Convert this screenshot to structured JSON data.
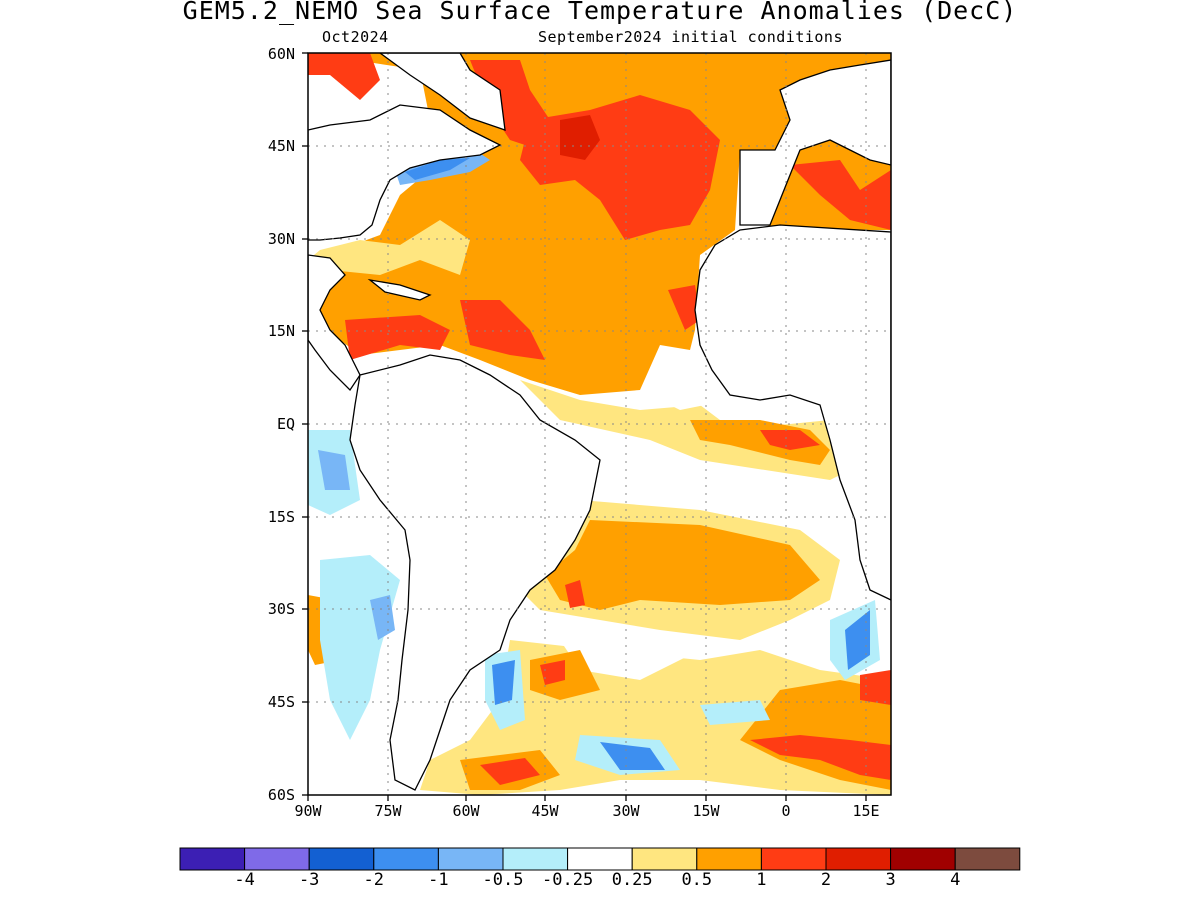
{
  "title": "GEM5.2_NEMO Sea Surface Temperature Anomalies (DecC)",
  "valid_month": "Oct2024",
  "init_conditions": "September2024 initial conditions",
  "lat_labels": [
    "60N",
    "45N",
    "30N",
    "15N",
    "EQ",
    "15S",
    "30S",
    "45S",
    "60S"
  ],
  "lon_labels": [
    "90W",
    "75W",
    "60W",
    "45W",
    "30W",
    "15W",
    "0",
    "15E"
  ],
  "colorbar": {
    "colors": [
      "#3c1fb4",
      "#7f6ae8",
      "#1360d2",
      "#3d8ff0",
      "#78b6f6",
      "#b4eefa",
      "#ffffff",
      "#ffe680",
      "#ffa000",
      "#ff3c14",
      "#e01e00",
      "#a00000",
      "#7d4b3e"
    ],
    "tick_labels": [
      "-4",
      "-3",
      "-2",
      "-1",
      "-0.5",
      "-0.25",
      "0.25",
      "0.5",
      "1",
      "2",
      "3",
      "4"
    ]
  }
}
